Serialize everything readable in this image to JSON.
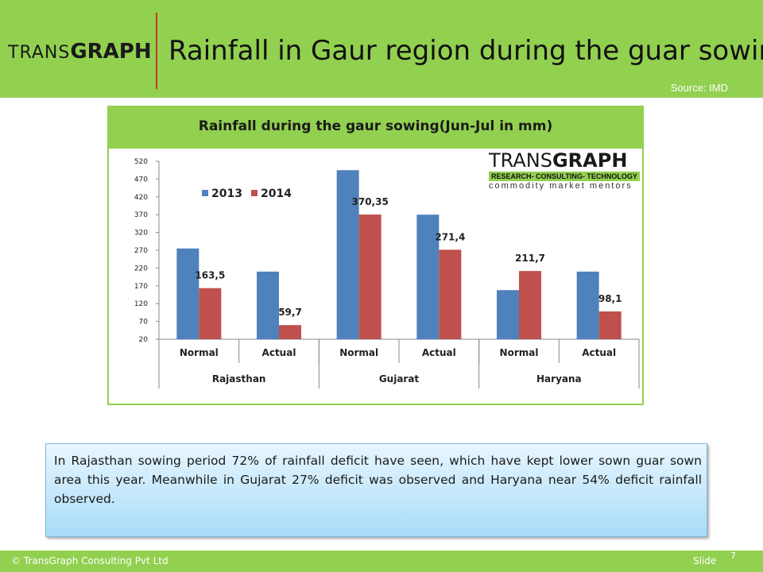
{
  "header": {
    "logo_trans": "TRANS",
    "logo_graph": "GRAPH",
    "title": "Rainfall in Gaur region during the guar sowing",
    "source": "Source: IMD"
  },
  "chart_logo": {
    "trans": "TRANS",
    "graph": "GRAPH",
    "tagline": "RESEARCH- CONSULTING- TECHNOLOGY",
    "motto": "commodity market mentors"
  },
  "chart_data": {
    "type": "bar",
    "title": "Rainfall during the gaur sowing(Jun-Jul in mm)",
    "categories": [
      "Normal",
      "Actual",
      "Normal",
      "Actual",
      "Normal",
      "Actual"
    ],
    "groups": [
      {
        "label": "Rajasthan",
        "span": 2
      },
      {
        "label": "Gujarat",
        "span": 2
      },
      {
        "label": "Haryana",
        "span": 2
      }
    ],
    "series": [
      {
        "name": "2013",
        "color": "#4f81bd",
        "values": [
          275,
          210,
          495,
          370,
          158,
          210
        ],
        "labels": [
          "",
          "",
          "",
          "",
          "",
          ""
        ]
      },
      {
        "name": "2014",
        "color": "#c0504d",
        "values": [
          163.5,
          59.7,
          370.35,
          271.4,
          211.7,
          98.1
        ],
        "labels": [
          "163,5",
          "59,7",
          "370,35",
          "271,4",
          "211,7",
          "98,1"
        ]
      }
    ],
    "ylim": [
      20,
      520
    ],
    "yticks": [
      "20",
      "70",
      "120",
      "170",
      "220",
      "270",
      "320",
      "370",
      "420",
      "470",
      "520"
    ],
    "xlabel": "",
    "ylabel": "",
    "legend_position": "top-left",
    "grid": false
  },
  "note": {
    "text": "In Rajasthan sowing period 72% of rainfall deficit have seen, which have kept lower sown guar sown area this year. Meanwhile in Gujarat 27% deficit was observed and Haryana near 54% deficit rainfall observed."
  },
  "footer": {
    "copyright": "© TransGraph Consulting Pvt Ltd",
    "slide_label": "Slide",
    "slide_number": "7"
  }
}
